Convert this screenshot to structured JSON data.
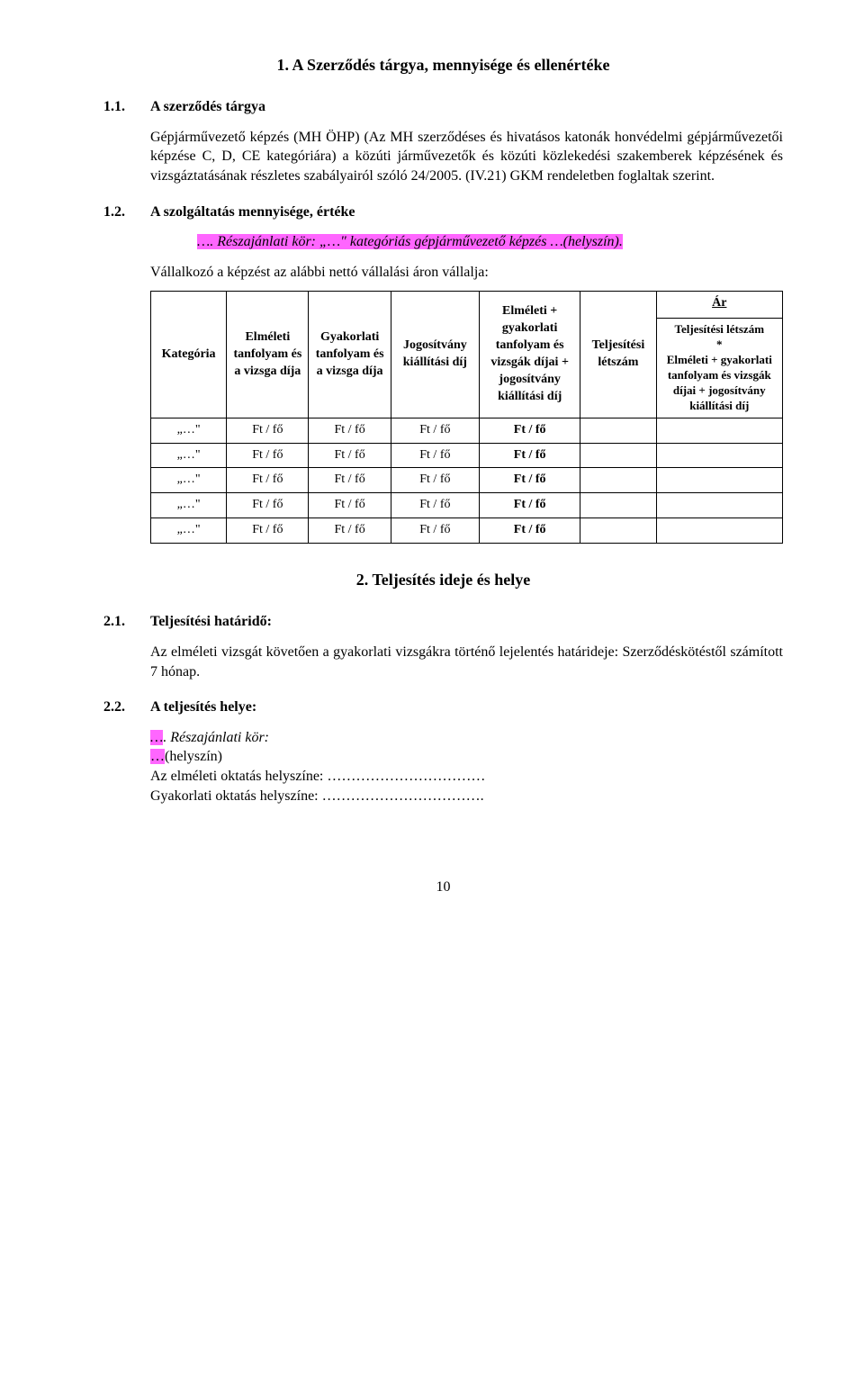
{
  "section1": {
    "title": "1. A Szerződés tárgya, mennyisége és ellenértéke",
    "sub1_1_num": "1.1.",
    "sub1_1_title": "A szerződés tárgya",
    "paragraph1": "Gépjárművezető képzés (MH ÖHP) (Az MH szerződéses és hivatásos katonák honvédelmi gépjárművezetői képzése C, D, CE kategóriára) a közúti járművezetők és közúti közlekedési szakemberek képzésének és vizsgáztatásának részletes szabályairól szóló 24/2005. (IV.21) GKM rendeletben foglaltak szerint.",
    "sub1_2_num": "1.2.",
    "sub1_2_title": "A szolgáltatás mennyisége, értéke",
    "quote_prefix": "…",
    "quote_body": ". Részajánlati kör: „…\" kategóriás gépjárművezető képzés …(helyszín).",
    "vallalja": "Vállalkozó a képzést az alábbi nettó vállalási áron vállalja:"
  },
  "table": {
    "ar_header": "Ár",
    "headers": {
      "col0": "Kategória",
      "col1": "Elméleti tanfolyam és a vizsga díja",
      "col2": "Gyakorlati tanfolyam és a vizsga díja",
      "col3": "Jogosítvány kiállítási díj",
      "col4": "Elméleti + gyakorlati tanfolyam és vizsgák díjai + jogosítvány kiállítási díj",
      "col5": "Teljesítési létszám",
      "col6": "Teljesítési létszám\n*\nElméleti + gyakorlati tanfolyam és vizsgák díjai + jogosítvány kiállítási díj"
    },
    "rows": [
      {
        "cat": "„…\"",
        "c1": "Ft / fő",
        "c2": "Ft / fő",
        "c3": "Ft / fő",
        "c4": "Ft / fő",
        "c5": "",
        "c6": ""
      },
      {
        "cat": "„…\"",
        "c1": "Ft / fő",
        "c2": "Ft / fő",
        "c3": "Ft / fő",
        "c4": "Ft / fő",
        "c5": "",
        "c6": ""
      },
      {
        "cat": "„…\"",
        "c1": "Ft / fő",
        "c2": "Ft / fő",
        "c3": "Ft / fő",
        "c4": "Ft / fő",
        "c5": "",
        "c6": ""
      },
      {
        "cat": "„…\"",
        "c1": "Ft / fő",
        "c2": "Ft / fő",
        "c3": "Ft / fő",
        "c4": "Ft / fő",
        "c5": "",
        "c6": ""
      },
      {
        "cat": "„…\"",
        "c1": "Ft / fő",
        "c2": "Ft / fő",
        "c3": "Ft / fő",
        "c4": "Ft / fő",
        "c5": "",
        "c6": ""
      }
    ]
  },
  "section2": {
    "title": "2. Teljesítés ideje és helye",
    "sub2_1_num": "2.1.",
    "sub2_1_title": "Teljesítési határidő:",
    "paragraph": "Az elméleti vizsgát követően a gyakorlati vizsgákra történő lejelentés határideje: Szerződéskötéstől számított 7 hónap.",
    "sub2_2_num": "2.2.",
    "sub2_2_title": "A teljesítés helye:",
    "resz_prefix": "…",
    "resz_body": ". Részajánlati kör:",
    "helyszin_prefix": "…",
    "helyszin_body": "(helyszín)",
    "elmeleti": "Az elméleti oktatás helyszíne: ……………………………",
    "gyakorlati": "Gyakorlati oktatás helyszíne: …………………………….",
    "page_number": "10"
  },
  "styling": {
    "highlight_color": "#ff66ff",
    "text_color": "#000000",
    "background_color": "#ffffff",
    "font_family": "Times New Roman",
    "base_font_size": 16,
    "table_font_size": 14,
    "title_font_size": 18,
    "border_color": "#000000",
    "column_widths_pct": [
      12,
      13,
      13,
      14,
      16,
      12,
      20
    ]
  }
}
